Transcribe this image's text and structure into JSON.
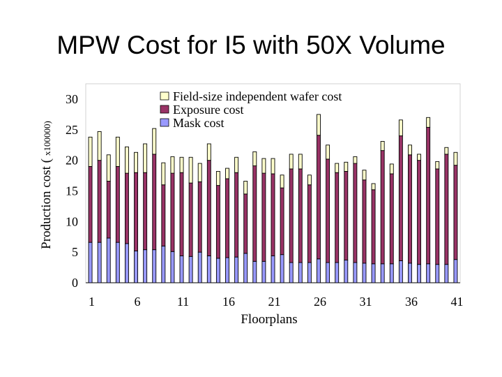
{
  "slide": {
    "title": "MPW Cost for I5 with 50X Volume"
  },
  "chart_data": {
    "type": "bar",
    "stacked": true,
    "xlabel": "Floorplans",
    "ylabel": "Production cost (",
    "ylabel_multiplier": "x100000)",
    "ylim": [
      0,
      30
    ],
    "yticks": [
      0,
      5,
      10,
      15,
      20,
      25,
      30
    ],
    "xtick_labels": [
      "1",
      "6",
      "11",
      "16",
      "21",
      "26",
      "31",
      "36",
      "41"
    ],
    "legend_position": "top-left",
    "grid": false,
    "colors": {
      "mask": "#9999ff",
      "exposure": "#993366",
      "field": "#ffffcc",
      "outline": "#000000"
    },
    "categories": [
      1,
      2,
      3,
      4,
      5,
      6,
      7,
      8,
      9,
      10,
      11,
      12,
      13,
      14,
      15,
      16,
      17,
      18,
      19,
      20,
      21,
      22,
      23,
      24,
      25,
      26,
      27,
      28,
      29,
      30,
      31,
      32,
      33,
      34,
      35,
      36,
      37,
      38,
      39,
      40,
      41
    ],
    "series": [
      {
        "name": "Mask cost",
        "values": [
          6.6,
          6.6,
          7.3,
          6.6,
          6.4,
          5.2,
          5.4,
          5.4,
          6.0,
          5.1,
          4.4,
          4.3,
          5.0,
          4.4,
          4.0,
          4.1,
          4.2,
          4.8,
          3.5,
          3.5,
          4.4,
          4.6,
          3.3,
          3.3,
          3.3,
          3.9,
          3.3,
          3.3,
          3.7,
          3.3,
          3.2,
          3.1,
          3.1,
          3.1,
          3.6,
          3.2,
          3.0,
          3.1,
          3.0,
          3.0,
          3.8
        ]
      },
      {
        "name": "Exposure cost",
        "values": [
          12.4,
          13.4,
          9.3,
          12.4,
          11.5,
          12.8,
          12.6,
          15.6,
          10.0,
          12.8,
          13.6,
          12.0,
          11.5,
          15.6,
          11.9,
          12.9,
          13.8,
          9.7,
          15.6,
          14.4,
          13.4,
          10.9,
          15.3,
          15.3,
          12.7,
          20.2,
          16.9,
          14.7,
          14.5,
          16.2,
          13.6,
          12.1,
          18.5,
          14.7,
          20.4,
          17.7,
          17.0,
          22.3,
          15.6,
          18.0,
          15.4
        ]
      },
      {
        "name": "Field-size independent wafer cost",
        "values": [
          4.8,
          4.7,
          4.3,
          4.8,
          4.3,
          3.3,
          4.7,
          4.2,
          3.6,
          2.7,
          2.5,
          4.2,
          3.0,
          2.7,
          2.3,
          1.7,
          2.5,
          2.1,
          2.3,
          2.4,
          2.5,
          2.1,
          2.4,
          2.4,
          1.6,
          3.4,
          2.3,
          1.5,
          1.5,
          1.1,
          1.6,
          1.0,
          1.5,
          1.6,
          2.6,
          1.6,
          1.0,
          1.6,
          1.2,
          1.1,
          2.1
        ]
      }
    ]
  }
}
